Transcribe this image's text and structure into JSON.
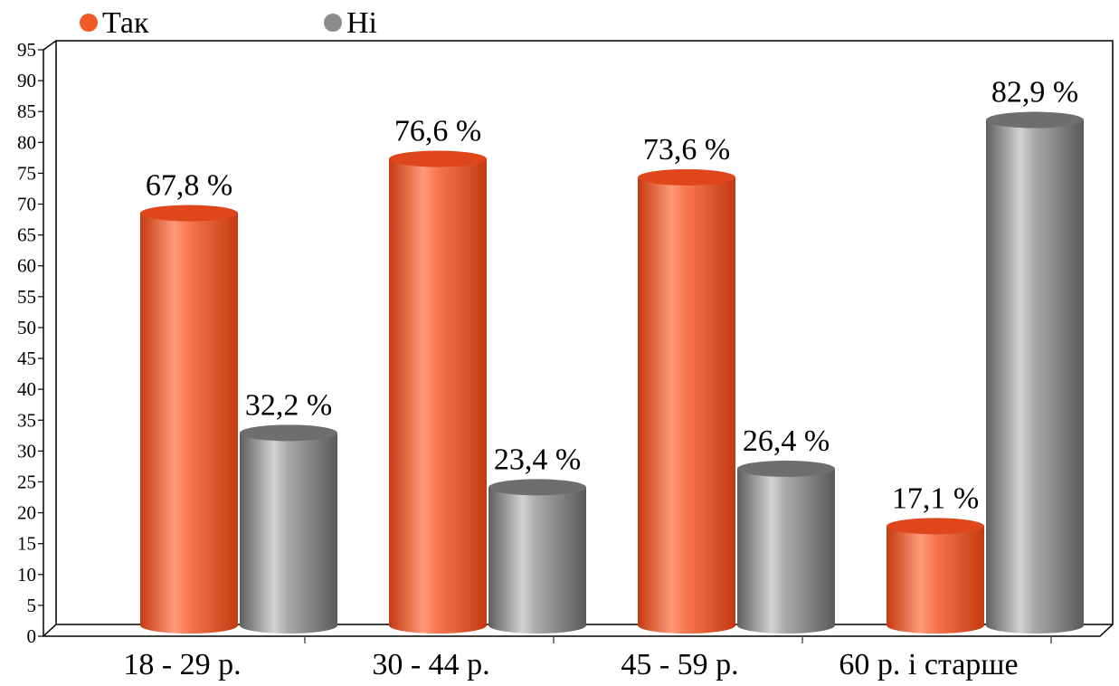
{
  "legend": [
    {
      "label": "Так",
      "color": "#f05a28"
    },
    {
      "label": "Ні",
      "color": "#8c8c8c"
    }
  ],
  "chart_data": {
    "type": "bar",
    "style": "3d-cylinder",
    "categories": [
      "18 - 29 р.",
      "30 - 44 р.",
      "45 - 59 р.",
      "60 р. і старше"
    ],
    "series": [
      {
        "name": "Так",
        "values": [
          67.8,
          76.6,
          73.6,
          17.1
        ],
        "labels": [
          "67,8 %",
          "76,6 %",
          "73,6 %",
          "17,1 %"
        ],
        "color": "#f05a28"
      },
      {
        "name": "Ні",
        "values": [
          32.2,
          23.4,
          26.4,
          82.9
        ],
        "labels": [
          "32,2 %",
          "23,4 %",
          "26,4 %",
          "82,9 %"
        ],
        "color": "#8c8c8c"
      }
    ],
    "yticks": [
      "0",
      "5",
      "10",
      "15",
      "20",
      "25",
      "30",
      "35",
      "40",
      "45",
      "50",
      "55",
      "60",
      "65",
      "70",
      "75",
      "80",
      "85",
      "90",
      "95"
    ],
    "ylim": [
      0,
      95
    ],
    "grid": false,
    "legend_position": "top-left"
  }
}
